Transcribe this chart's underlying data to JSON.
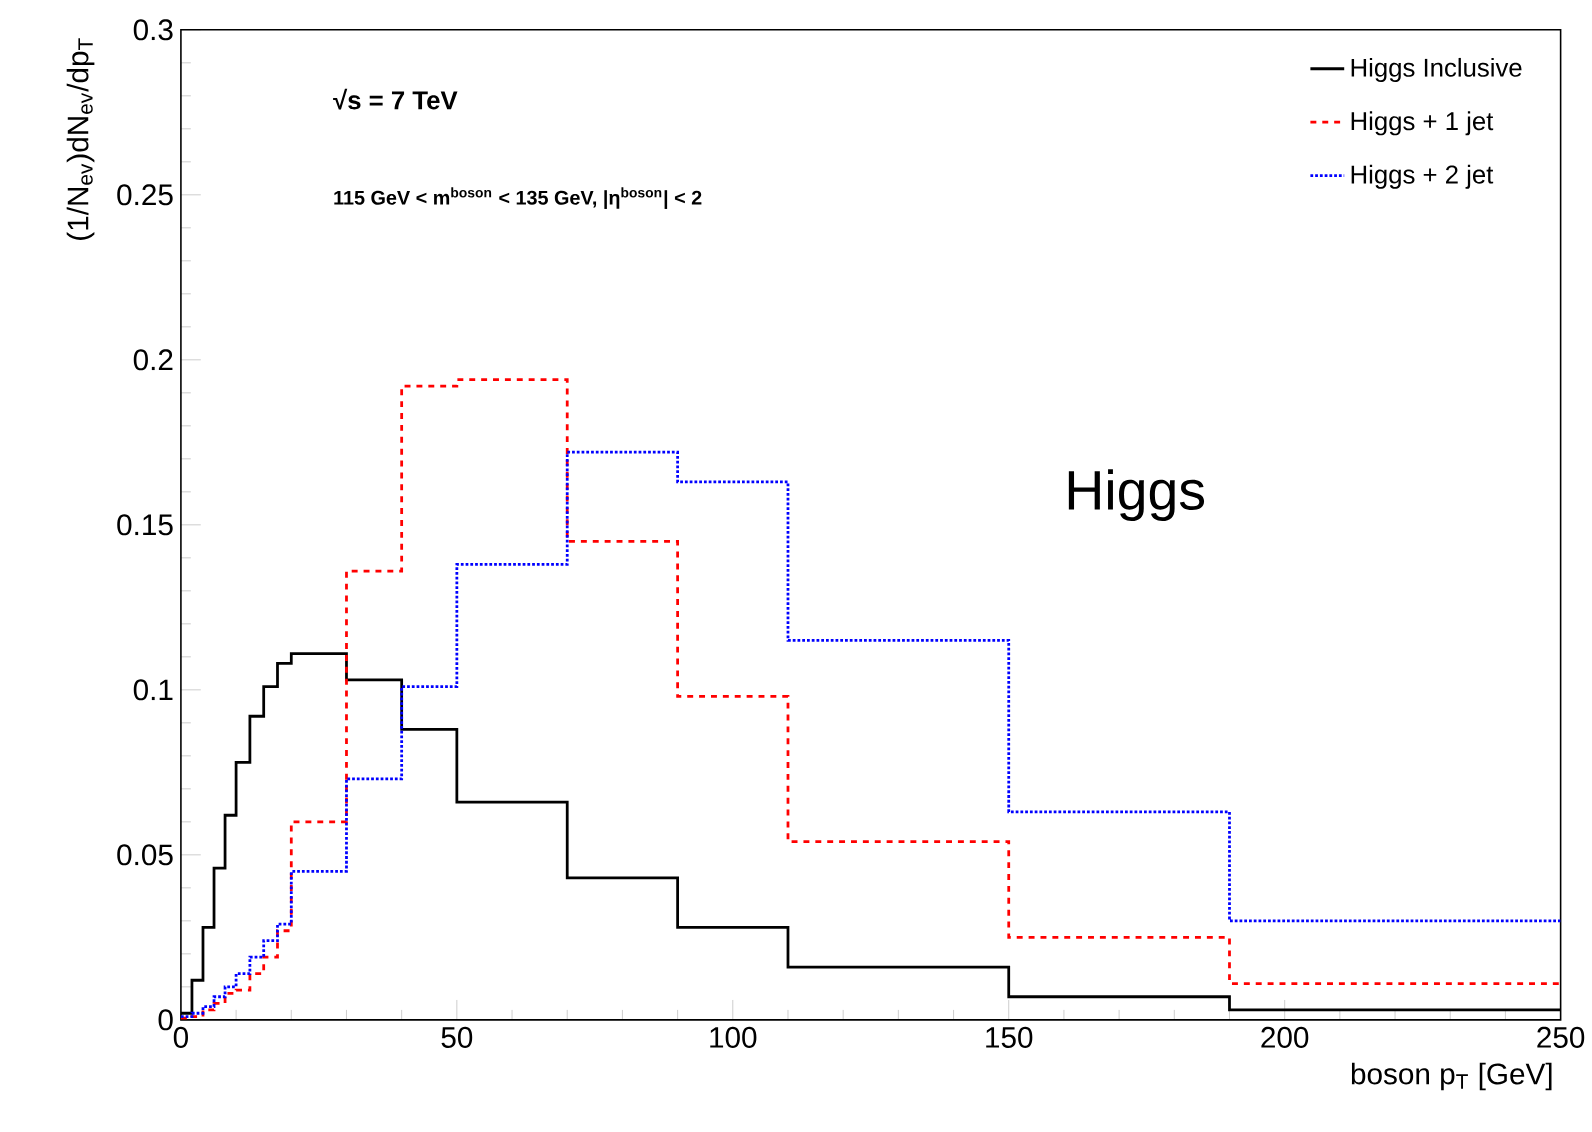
{
  "chart_data": {
    "type": "histogram",
    "xlabel": "boson p$_{T}$ [GeV]",
    "ylabel": "(1/N$_{ev}$)dN$_{ev}$/dp$_{T}$",
    "bins": [
      0,
      2,
      4,
      6,
      8,
      10,
      12.5,
      15,
      17.5,
      20,
      30,
      40,
      50,
      70,
      90,
      110,
      150,
      190,
      250
    ],
    "series": [
      {
        "name": "Higgs Inclusive",
        "color": "#000000",
        "line_style": "solid",
        "values": [
          0.002,
          0.012,
          0.028,
          0.046,
          0.062,
          0.078,
          0.092,
          0.101,
          0.108,
          0.111,
          0.103,
          0.088,
          0.066,
          0.043,
          0.028,
          0.016,
          0.007,
          0.003
        ]
      },
      {
        "name": "Higgs + 1 jet",
        "color": "#ff0000",
        "line_style": "dashed",
        "values": [
          0.0005,
          0.001,
          0.003,
          0.005,
          0.008,
          0.009,
          0.014,
          0.019,
          0.027,
          0.06,
          0.136,
          0.192,
          0.194,
          0.145,
          0.098,
          0.054,
          0.025,
          0.011
        ]
      },
      {
        "name": "Higgs + 2 jet",
        "color": "#0000ff",
        "line_style": "dotted",
        "values": [
          0.001,
          0.002,
          0.004,
          0.007,
          0.01,
          0.014,
          0.019,
          0.024,
          0.029,
          0.045,
          0.073,
          0.101,
          0.138,
          0.172,
          0.163,
          0.115,
          0.063,
          0.03
        ]
      }
    ],
    "xlim": [
      0,
      250
    ],
    "ylim": [
      0,
      0.3
    ],
    "xticks": [
      0,
      50,
      100,
      150,
      200,
      250
    ],
    "yticks": [
      0,
      0.05,
      0.1,
      0.15,
      0.2,
      0.25,
      0.3
    ],
    "legend": "top right",
    "annotations": [
      "√s = 7 TeV",
      "115 GeV < m$^{boson}$ < 135 GeV, |η$^{boson}$| < 2",
      "Higgs"
    ]
  }
}
